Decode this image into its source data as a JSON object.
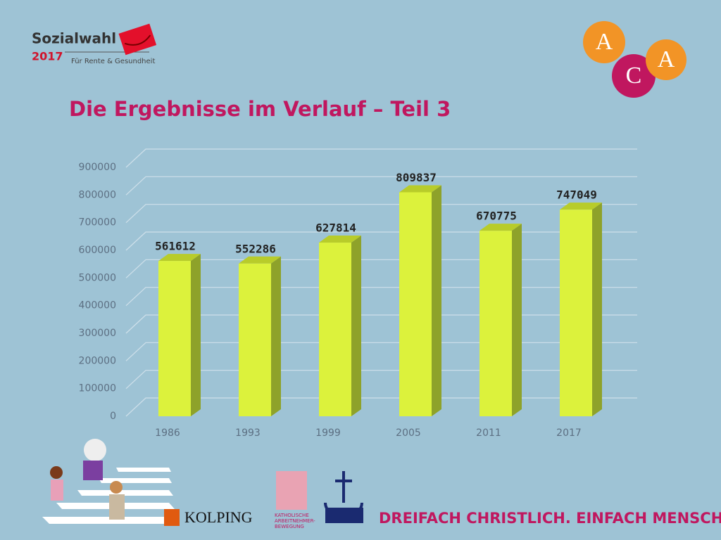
{
  "header": {
    "brand": "Sozialwahl",
    "year": "2017",
    "tagline": "Für Rente & Gesundheit",
    "logo_letters": [
      "A",
      "C",
      "A"
    ]
  },
  "chart_data": {
    "type": "bar",
    "title": "Die Ergebnisse im Verlauf – Teil 3",
    "categories": [
      "1986",
      "1993",
      "1999",
      "2005",
      "2011",
      "2017"
    ],
    "values": [
      561612,
      552286,
      627814,
      809837,
      670775,
      747049
    ],
    "color": "#dcf23c",
    "ylim": [
      0,
      900000
    ],
    "yticks": [
      0,
      100000,
      200000,
      300000,
      400000,
      500000,
      600000,
      700000,
      800000,
      900000
    ],
    "grid": true
  },
  "footer": {
    "kolping": "KOLPING",
    "kab": [
      "KATHOLISCHE",
      "ARBEITNEHMER-",
      "BEWEGUNG"
    ],
    "slogan": "DREIFACH CHRISTLICH. EINFACH MENSCHLICH."
  }
}
